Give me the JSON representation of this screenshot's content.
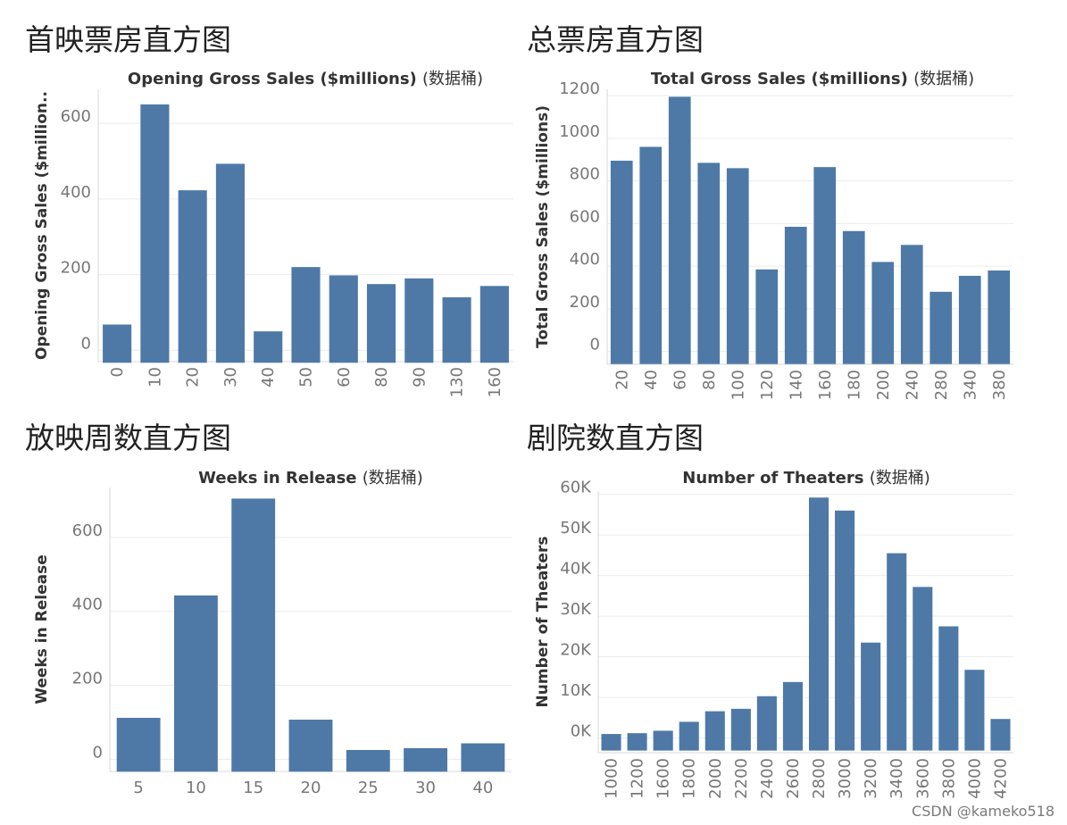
{
  "headings": [
    "首映票房直方图",
    "总票房直方图",
    "放映周数直方图",
    "剧院数直方图"
  ],
  "watermark": "CSDN @kameko518",
  "chart_data": [
    {
      "type": "bar",
      "title": "Opening Gross Sales ($millions)",
      "title_suffix": "(数据桶)",
      "ylabel": "Opening Gross Sales ($million..",
      "xlabel": "",
      "categories": [
        "0",
        "10",
        "20",
        "30",
        "40",
        "50",
        "60",
        "80",
        "90",
        "130",
        "160"
      ],
      "values": [
        68,
        650,
        423,
        493,
        50,
        220,
        198,
        175,
        190,
        140,
        170
      ],
      "ylim": [
        -30,
        690
      ],
      "yticks": [
        0,
        200,
        400,
        600
      ],
      "ytick_labels": [
        "0",
        "200",
        "400",
        "600"
      ],
      "x_label_rotation": "vertical",
      "grid": true
    },
    {
      "type": "bar",
      "title": "Total Gross Sales ($millions)",
      "title_suffix": "(数据桶)",
      "ylabel": "Total Gross Sales ($millions)",
      "xlabel": "",
      "categories": [
        "20",
        "40",
        "60",
        "80",
        "100",
        "120",
        "140",
        "160",
        "180",
        "200",
        "240",
        "280",
        "340",
        "380"
      ],
      "values": [
        895,
        960,
        1195,
        885,
        860,
        385,
        585,
        865,
        565,
        420,
        500,
        280,
        355,
        380
      ],
      "ylim": [
        -60,
        1230
      ],
      "yticks": [
        0,
        200,
        400,
        600,
        800,
        1000,
        1200
      ],
      "ytick_labels": [
        "0",
        "200",
        "400",
        "600",
        "800",
        "1000",
        "1200"
      ],
      "x_label_rotation": "vertical",
      "grid": true
    },
    {
      "type": "bar",
      "title": "Weeks in Release",
      "title_suffix": "(数据桶)",
      "ylabel": "Weeks in Release",
      "xlabel": "",
      "categories": [
        "5",
        "10",
        "15",
        "20",
        "25",
        "30",
        "40"
      ],
      "values": [
        112,
        443,
        705,
        107,
        25,
        30,
        43
      ],
      "ylim": [
        -33,
        735
      ],
      "yticks": [
        0,
        200,
        400,
        600
      ],
      "ytick_labels": [
        "0",
        "200",
        "400",
        "600"
      ],
      "x_label_rotation": "horizontal",
      "grid": true
    },
    {
      "type": "bar",
      "title": "Number of Theaters",
      "title_suffix": "(数据桶)",
      "ylabel": "Number of Theaters",
      "xlabel": "",
      "categories": [
        "1000",
        "1200",
        "1600",
        "1800",
        "2000",
        "2200",
        "2400",
        "2600",
        "2800",
        "3000",
        "3200",
        "3400",
        "3600",
        "3800",
        "4000",
        "4200"
      ],
      "values": [
        1000,
        1200,
        1800,
        4000,
        6600,
        7200,
        10300,
        13800,
        59200,
        56000,
        23500,
        45500,
        37200,
        27500,
        16800,
        4700
      ],
      "ylim": [
        -3600,
        60800
      ],
      "yticks": [
        0,
        10000,
        20000,
        30000,
        40000,
        50000,
        60000
      ],
      "ytick_labels": [
        "0K",
        "10K",
        "20K",
        "30K",
        "40K",
        "50K",
        "60K"
      ],
      "x_label_rotation": "vertical",
      "grid": true
    }
  ]
}
